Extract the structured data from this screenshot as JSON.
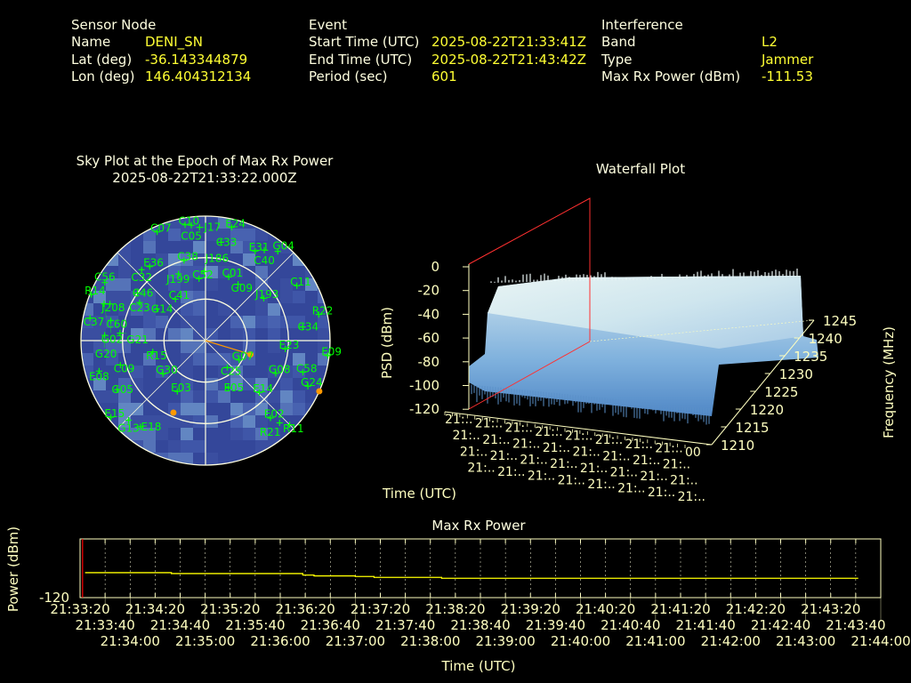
{
  "header": {
    "sensor": {
      "heading": "Sensor Node",
      "rows": [
        {
          "label": "Name",
          "value": "DENI_SN"
        },
        {
          "label": "Lat (deg)",
          "value": "-36.143344879"
        },
        {
          "label": "Lon (deg)",
          "value": "146.404312134"
        }
      ]
    },
    "event": {
      "heading": "Event",
      "rows": [
        {
          "label": "Start Time (UTC)",
          "value": "2025-08-22T21:33:41Z"
        },
        {
          "label": "End Time (UTC)",
          "value": "2025-08-22T21:43:42Z"
        },
        {
          "label": "Period (sec)",
          "value": "601"
        }
      ]
    },
    "interference": {
      "heading": "Interference",
      "rows": [
        {
          "label": "Band",
          "value": "L2"
        },
        {
          "label": "Type",
          "value": "Jammer"
        },
        {
          "label": "Max Rx Power (dBm)",
          "value": "-111.53"
        }
      ]
    }
  },
  "colors": {
    "text": "#ffffe0",
    "value": "#ffff33",
    "satellite": "#00ff00",
    "highlight": "#ff9900",
    "sky_bg": "#3a4ea0",
    "line": "#ffff00",
    "marker_red": "#ff0000"
  },
  "chart_data": [
    {
      "type": "scatter",
      "subtype": "polar-sky-plot",
      "title": "Sky Plot at the Epoch of Max Rx Power",
      "subtitle": "2025-08-22T21:33:22.000Z",
      "elevation_rings": [
        0,
        30,
        60
      ],
      "azimuth_lines_every_deg": 45,
      "satellites": [
        {
          "id": "C07",
          "az": 336,
          "el": 4
        },
        {
          "id": "C10",
          "az": 350,
          "el": 5
        },
        {
          "id": "C05",
          "az": 353,
          "el": 6
        },
        {
          "id": "J17",
          "az": 357,
          "el": 8
        },
        {
          "id": "E24",
          "az": 13,
          "el": 6
        },
        {
          "id": "C33",
          "az": 9,
          "el": 18
        },
        {
          "id": "E31",
          "az": 29,
          "el": 16
        },
        {
          "id": "C40",
          "az": 33,
          "el": 12
        },
        {
          "id": "G04",
          "az": 39,
          "el": 7
        },
        {
          "id": "E36",
          "az": 323,
          "el": 23
        },
        {
          "id": "C32",
          "az": 318,
          "el": 21
        },
        {
          "id": "C52",
          "az": 354,
          "el": 45
        },
        {
          "id": "C01",
          "az": 20,
          "el": 41
        },
        {
          "id": "G09",
          "az": 30,
          "el": 43
        },
        {
          "id": "J199",
          "az": 338,
          "el": 38
        },
        {
          "id": "C38",
          "az": 345,
          "el": 30
        },
        {
          "id": "J186",
          "az": 359,
          "el": 40
        },
        {
          "id": "C41",
          "az": 324,
          "el": 53
        },
        {
          "id": "J193",
          "az": 54,
          "el": 38
        },
        {
          "id": "C11",
          "az": 59,
          "el": 13
        },
        {
          "id": "R14",
          "az": 292,
          "el": 1
        },
        {
          "id": "C56",
          "az": 300,
          "el": 6
        },
        {
          "id": "J208",
          "az": 291,
          "el": 16
        },
        {
          "id": "G14",
          "az": 303,
          "el": 48
        },
        {
          "id": "C23",
          "az": 300,
          "el": 35
        },
        {
          "id": "C46",
          "az": 305,
          "el": 30
        },
        {
          "id": "C37",
          "az": 281,
          "el": 5
        },
        {
          "id": "C60",
          "az": 290,
          "el": 12
        },
        {
          "id": "G02",
          "az": 282,
          "el": 20
        },
        {
          "id": "G20",
          "az": 273,
          "el": 17
        },
        {
          "id": "G21",
          "az": 275,
          "el": 28
        },
        {
          "id": "R22",
          "az": 77,
          "el": 6
        },
        {
          "id": "C34",
          "az": 82,
          "el": 19
        },
        {
          "id": "E09",
          "az": 97,
          "el": 1
        },
        {
          "id": "E23",
          "az": 96,
          "el": 32
        },
        {
          "id": "G08",
          "az": 115,
          "el": 34
        },
        {
          "id": "C58",
          "az": 108,
          "el": 16
        },
        {
          "id": "G24",
          "az": 114,
          "el": 9
        },
        {
          "id": "G07",
          "az": 120,
          "el": 62
        },
        {
          "id": "C25",
          "az": 141,
          "el": 65
        },
        {
          "id": "E05",
          "az": 154,
          "el": 52
        },
        {
          "id": "E14",
          "az": 134,
          "el": 36
        },
        {
          "id": "E03",
          "az": 209,
          "el": 48
        },
        {
          "id": "G30",
          "az": 232,
          "el": 51
        },
        {
          "id": "C09",
          "az": 254,
          "el": 26
        },
        {
          "id": "E08",
          "az": 254,
          "el": 10
        },
        {
          "id": "G05",
          "az": 241,
          "el": 17
        },
        {
          "id": "E15",
          "az": 231,
          "el": 2
        },
        {
          "id": "G13",
          "az": 224,
          "el": 10
        },
        {
          "id": "E18",
          "az": 217,
          "el": 12
        },
        {
          "id": "E02",
          "az": 140,
          "el": 17
        },
        {
          "id": "R11",
          "az": 135,
          "el": 4
        },
        {
          "id": "R21",
          "az": 138,
          "el": 10
        },
        {
          "id": "R15",
          "az": 258,
          "el": 51
        }
      ],
      "highlighted": [
        {
          "az": 107,
          "el": 56,
          "direction_line": true
        },
        {
          "az": 114,
          "el": 0
        },
        {
          "az": 204,
          "el": 33
        }
      ]
    },
    {
      "type": "surface",
      "subtype": "3d-waterfall",
      "title": "Waterfall Plot",
      "zlabel": "PSD (dBm)",
      "xlabel": "Time (UTC)",
      "ylabel": "Frequency (MHz)",
      "zlim": [
        -120,
        0
      ],
      "z_ticks": [
        "0",
        "-20",
        "-40",
        "-60",
        "-80",
        "-100",
        "-120"
      ],
      "y_ticks": [
        "1210",
        "1215",
        "1220",
        "1225",
        "1230",
        "1235",
        "1240",
        "1245"
      ],
      "x_tick_label": "21:..",
      "x_tick_count": 33,
      "x_tick_end_label": "00",
      "noise_floor_dbm": -100,
      "jammer_band_mhz": [
        1212,
        1242
      ],
      "jammer_level_dbm": -20
    },
    {
      "type": "line",
      "title": "Max Rx Power",
      "xlabel": "Time (UTC)",
      "ylabel": "Power (dBm)",
      "ylim": [
        -120,
        -100
      ],
      "y_ticks": [
        "-120"
      ],
      "xlim": [
        "21:33:20",
        "21:44:00"
      ],
      "x_ticks": [
        "21:33:20",
        "21:33:40",
        "21:34:00",
        "21:34:20",
        "21:34:40",
        "21:35:00",
        "21:35:20",
        "21:35:40",
        "21:36:00",
        "21:36:20",
        "21:36:40",
        "21:37:00",
        "21:37:20",
        "21:37:40",
        "21:38:00",
        "21:38:20",
        "21:38:40",
        "21:39:00",
        "21:39:20",
        "21:39:40",
        "21:40:00",
        "21:40:20",
        "21:40:40",
        "21:41:00",
        "21:41:20",
        "21:41:40",
        "21:42:00",
        "21:42:20",
        "21:42:40",
        "21:43:00",
        "21:43:20",
        "21:43:40",
        "21:44:00"
      ],
      "grid": true,
      "x": [
        "21:33:24",
        "21:34:33",
        "21:36:18",
        "21:36:27",
        "21:37:00",
        "21:37:15",
        "21:38:09",
        "21:43:42"
      ],
      "y": [
        -111.5,
        -111.8,
        -112.3,
        -112.6,
        -112.8,
        -113.1,
        -113.4,
        -113.4
      ],
      "marker_time": "21:33:22"
    }
  ]
}
